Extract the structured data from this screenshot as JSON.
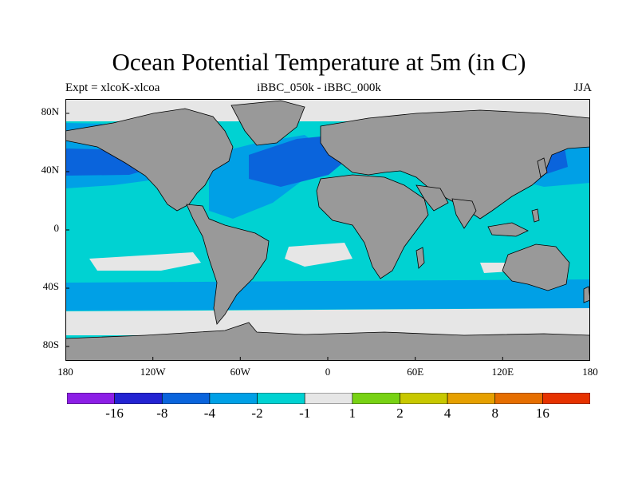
{
  "title": "Ocean Potential Temperature at 5m (in C)",
  "subtitles": {
    "left": "Expt = xlcoK-xlcoa",
    "center": "iBBC_050k - iBBC_000k",
    "right": "JJA"
  },
  "axes": {
    "latitude_labels": [
      "80N",
      "40N",
      "0",
      "40S",
      "80S"
    ],
    "longitude_labels": [
      "180",
      "120W",
      "60W",
      "0",
      "60E",
      "120E",
      "180"
    ]
  },
  "colors": {
    "land": "#999999",
    "ocean_background": "#00d2d2",
    "sea_ice_or_near_zero": "#e6e6e6",
    "coastline": "#000000"
  },
  "map_data": {
    "type": "global-field-map",
    "projection": "cylindrical-equidistant",
    "lon_range": [
      -180,
      180
    ],
    "lat_range": [
      -90,
      90
    ],
    "regions": [
      {
        "name": "North Atlantic strong cooling",
        "class": "-8 to -4",
        "lon": [
          -60,
          -10
        ],
        "lat": [
          40,
          65
        ]
      },
      {
        "name": "Subtropical Atlantic cooling",
        "class": "-4 to -2",
        "lon": [
          -80,
          -15
        ],
        "lat": [
          10,
          45
        ]
      },
      {
        "name": "North Pacific cooling",
        "class": "-4 to -2",
        "lon": [
          -180,
          -120
        ],
        "lat": [
          25,
          50
        ]
      },
      {
        "name": "Northwest Pacific cooling",
        "class": "-8 to -4",
        "lon": [
          120,
          180
        ],
        "lat": [
          30,
          55
        ]
      },
      {
        "name": "Southern Ocean near-zero",
        "class": "-1 to 1",
        "lon": [
          -180,
          180
        ],
        "lat": [
          -75,
          -58
        ]
      },
      {
        "name": "Arctic near-zero",
        "class": "-1 to 1",
        "lon": [
          -180,
          180
        ],
        "lat": [
          70,
          90
        ]
      }
    ]
  },
  "colorbar": {
    "colors": [
      "#8c1ee6",
      "#2323d2",
      "#0a64dc",
      "#00a0e6",
      "#00d2d2",
      "#e6e6e6",
      "#78d214",
      "#c8c800",
      "#e6a000",
      "#e66e00",
      "#e63200"
    ],
    "labels": [
      "-16",
      "-8",
      "-4",
      "-2",
      "-1",
      "1",
      "2",
      "4",
      "8",
      "16"
    ]
  }
}
